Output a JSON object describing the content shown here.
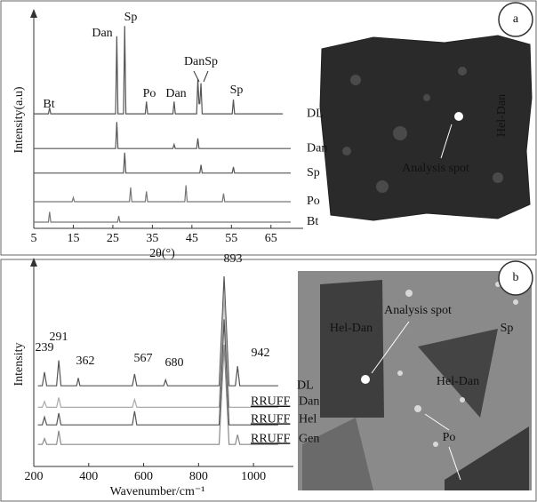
{
  "chart_data": [
    {
      "type": "line",
      "xlabel": "2θ(°)",
      "ylabel": "Intensity(a.u)",
      "xlim": [
        5,
        70
      ],
      "ylim": [
        0,
        100
      ],
      "xticks": [
        5,
        15,
        25,
        35,
        45,
        55,
        65
      ],
      "annotations": [
        "Bt",
        "Dan",
        "Sp",
        "Po",
        "Dan",
        "DanSp",
        "Sp"
      ],
      "series": [
        {
          "name": "DL",
          "color": "#555555",
          "x": [
            5,
            8.7,
            9,
            9.3,
            25.7,
            26,
            26.3,
            27.7,
            28,
            28.3,
            33.2,
            33.5,
            33.8,
            40.2,
            40.5,
            40.8,
            46.2,
            46.5,
            46.8,
            47,
            47.3,
            47.6,
            55.2,
            55.5,
            55.8,
            68
          ],
          "values": [
            53,
            53,
            56,
            53,
            53,
            91,
            53,
            53,
            96,
            53,
            53,
            59,
            53,
            53,
            59,
            53,
            53,
            70,
            58,
            58,
            68,
            53,
            53,
            60,
            53,
            53
          ]
        },
        {
          "name": "Dan",
          "color": "#555555",
          "x": [
            5,
            25.7,
            26,
            26.3,
            40.2,
            40.5,
            40.8,
            46.2,
            46.5,
            46.8,
            70
          ],
          "values": [
            36,
            36,
            49,
            36,
            36,
            38,
            36,
            36,
            41,
            36,
            36
          ]
        },
        {
          "name": "Sp",
          "color": "#555555",
          "x": [
            5,
            27.7,
            28,
            28.3,
            47,
            47.3,
            47.6,
            55.2,
            55.5,
            55.8,
            70
          ],
          "values": [
            24,
            24,
            34,
            24,
            24,
            28,
            24,
            24,
            27,
            24,
            24
          ]
        },
        {
          "name": "Po",
          "color": "#777777",
          "x": [
            5,
            14.7,
            15,
            15.3,
            29.2,
            29.5,
            29.8,
            33.2,
            33.5,
            33.8,
            43.2,
            43.5,
            43.8,
            52.7,
            53,
            53.3,
            70
          ],
          "values": [
            10,
            10,
            12,
            10,
            10,
            17,
            10,
            10,
            15,
            10,
            10,
            18,
            10,
            10,
            14,
            10,
            10
          ]
        },
        {
          "name": "Bt",
          "color": "#777777",
          "x": [
            5,
            8.7,
            9,
            9.3,
            26.2,
            26.5,
            26.8,
            70
          ],
          "values": [
            0,
            0,
            5,
            0,
            0,
            3,
            0,
            0
          ]
        }
      ]
    },
    {
      "type": "line",
      "xlabel": "Wavenumber/cm⁻¹",
      "ylabel": "Intensity",
      "xlim": [
        200,
        1100
      ],
      "ylim": [
        0,
        100
      ],
      "xticks": [
        200,
        400,
        600,
        800,
        1000
      ],
      "reference_label": "RRUFF",
      "peak_labels": [
        239,
        291,
        362,
        567,
        680,
        893,
        942
      ],
      "series": [
        {
          "name": "DL",
          "color": "#555555",
          "x": [
            215,
            231,
            239,
            247,
            283,
            291,
            299,
            356,
            362,
            368,
            559,
            567,
            575,
            673,
            680,
            687,
            875,
            893,
            911,
            934,
            942,
            950,
            1090
          ],
          "values": [
            39,
            39,
            46,
            39,
            39,
            52,
            39,
            39,
            43,
            39,
            39,
            45,
            39,
            39,
            42,
            39,
            39,
            95,
            39,
            39,
            49,
            39,
            39
          ]
        },
        {
          "name": "Dan",
          "color": "#aaaaaa",
          "x": [
            215,
            231,
            239,
            247,
            283,
            291,
            299,
            559,
            567,
            575,
            875,
            893,
            911,
            1090
          ],
          "values": [
            28,
            28,
            31,
            28,
            28,
            33,
            28,
            28,
            32,
            28,
            28,
            86,
            28,
            28
          ]
        },
        {
          "name": "Hel",
          "color": "#555555",
          "x": [
            215,
            231,
            239,
            247,
            283,
            291,
            299,
            559,
            567,
            575,
            875,
            893,
            911,
            1090
          ],
          "values": [
            19,
            19,
            23,
            19,
            19,
            25,
            19,
            19,
            26,
            19,
            19,
            73,
            19,
            19
          ]
        },
        {
          "name": "Gen",
          "color": "#888888",
          "x": [
            215,
            231,
            239,
            247,
            283,
            291,
            299,
            875,
            893,
            911,
            934,
            942,
            950,
            1090
          ],
          "values": [
            9,
            9,
            12,
            9,
            9,
            16,
            9,
            9,
            60,
            9,
            9,
            14,
            9,
            9
          ]
        }
      ]
    }
  ],
  "panels": [
    {
      "label": "a",
      "image_labels": [
        "Hel-Dan",
        "Analysis spot"
      ]
    },
    {
      "label": "b",
      "image_labels": [
        "Hel-Dan",
        "Analysis spot",
        "Sp",
        "Hel-Dan",
        "Po"
      ]
    }
  ]
}
